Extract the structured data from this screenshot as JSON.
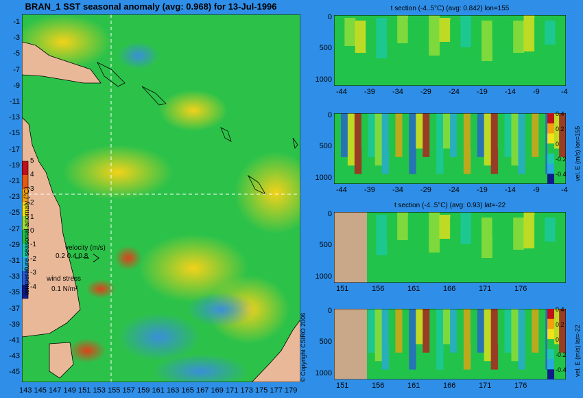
{
  "main_title": "BRAN_1 SST seasonal anomaly (avg: 0.968) for 13-Jul-1996",
  "map": {
    "lat_ticks": [
      "-1",
      "-3",
      "-5",
      "-7",
      "-9",
      "-11",
      "-13",
      "-15",
      "-17",
      "-19",
      "-21",
      "-23",
      "-25",
      "-27",
      "-29",
      "-31",
      "-33",
      "-35",
      "-37",
      "-39",
      "-41",
      "-43",
      "-45"
    ],
    "lon_ticks": [
      "143",
      "145",
      "147",
      "149",
      "151",
      "153",
      "155",
      "157",
      "159",
      "161",
      "163",
      "165",
      "167",
      "169",
      "171",
      "173",
      "175",
      "177",
      "179"
    ],
    "colorbar_label": "temperature seasonal anomaly (°C)",
    "colorbar_ticks": [
      "5",
      "4",
      "3",
      "2",
      "1",
      "0",
      "-1",
      "-2",
      "-3",
      "-4"
    ],
    "velocity_label": "velocity (m/s)",
    "velocity_scale": "0.2 0.4 0.8",
    "wind_label": "wind stress",
    "wind_scale": "0.1 N/m²"
  },
  "copyright": "© Copyright CSIRO 2006",
  "panels": [
    {
      "title": "t section (-4..5°C) (avg: 0.842) lon=155",
      "y_ticks": [
        "0",
        "500",
        "1000"
      ],
      "x_ticks": [
        "-44",
        "-39",
        "-34",
        "-29",
        "-24",
        "-19",
        "-14",
        "-9",
        "-4"
      ],
      "colorbar_label": "",
      "colorbar_ticks": []
    },
    {
      "title": "",
      "y_ticks": [
        "0",
        "500",
        "1000"
      ],
      "x_ticks": [
        "-44",
        "-39",
        "-34",
        "-29",
        "-24",
        "-19",
        "-14",
        "-9",
        "-4"
      ],
      "colorbar_label": "vel. E (m/s) lon=155",
      "colorbar_ticks": [
        "0.4",
        "0.2",
        "0",
        "-0.2",
        "-0.4"
      ]
    },
    {
      "title": "t section (-4..5°C) (avg: 0.93) lat=-22",
      "y_ticks": [
        "0",
        "500",
        "1000"
      ],
      "x_ticks": [
        "151",
        "156",
        "161",
        "166",
        "171",
        "176"
      ],
      "colorbar_label": "",
      "colorbar_ticks": []
    },
    {
      "title": "",
      "y_ticks": [
        "0",
        "500",
        "1000"
      ],
      "x_ticks": [
        "151",
        "156",
        "161",
        "166",
        "171",
        "176"
      ],
      "colorbar_label": "vel. E (m/s) lat=-22",
      "colorbar_ticks": [
        "0.4",
        "0.2",
        "0",
        "-0.2",
        "-0.4"
      ]
    }
  ],
  "colors": {
    "background": "#2f8fe8",
    "land": "#e8b898",
    "ocean_mid": "#22c34a",
    "warm": "#f2d21a",
    "hot": "#e04a10",
    "cool": "#3a8fd8",
    "section_land": "#c8a888"
  }
}
